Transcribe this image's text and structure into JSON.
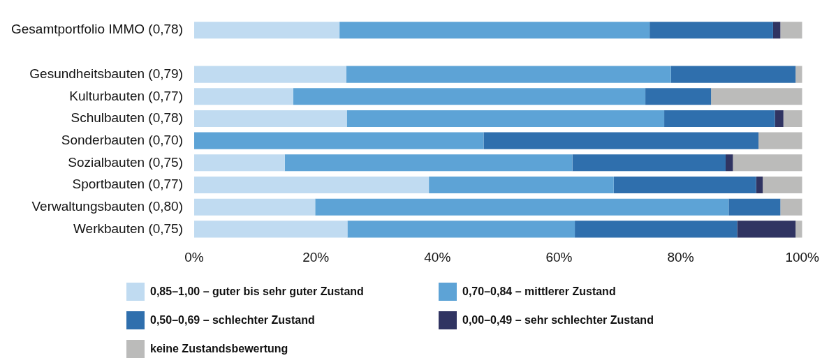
{
  "chart_data": {
    "type": "bar",
    "orientation": "horizontal",
    "stacked": true,
    "grid": false,
    "legend": "bottom",
    "categories": [
      "Gesamtportfolio IMMO (0,78)",
      null,
      "Gesundheitsbauten (0,79)",
      "Kulturbauten (0,77)",
      "Schulbauten (0,78)",
      "Sonderbauten (0,70)",
      "Sozialbauten (0,75)",
      "Sportbauten (0,77)",
      "Verwaltungsbauten (0,80)",
      "Werkbauten (0,75)"
    ],
    "xlim": [
      0,
      100
    ],
    "xticks": [
      {
        "value": 0,
        "label": "0%"
      },
      {
        "value": 20,
        "label": "20%"
      },
      {
        "value": 40,
        "label": "40%"
      },
      {
        "value": 60,
        "label": "60%"
      },
      {
        "value": 80,
        "label": "80%"
      },
      {
        "value": 100,
        "label": "100%"
      }
    ],
    "series": [
      {
        "name": "0,85–1,00 – guter bis sehr guter Zustand",
        "color": "#c0dbf1",
        "values": [
          23.9,
          null,
          25.0,
          16.3,
          25.1,
          0,
          14.9,
          38.6,
          19.9,
          25.2
        ]
      },
      {
        "name": "0,70–0,84 – mittlerer Zustand",
        "color": "#5da3d6",
        "values": [
          51.0,
          null,
          53.4,
          57.9,
          52.2,
          47.6,
          47.3,
          30.4,
          68.0,
          37.4
        ]
      },
      {
        "name": "0,50–0,69 – schlechter Zustand",
        "color": "#2f6fad",
        "values": [
          20.3,
          null,
          20.5,
          10.8,
          18.2,
          45.2,
          25.2,
          23.4,
          8.5,
          26.7
        ]
      },
      {
        "name": "0,00–0,49 – sehr schlechter Zustand",
        "color": "#303462",
        "values": [
          1.2,
          null,
          0,
          0,
          1.4,
          0,
          1.2,
          1.1,
          0,
          9.6
        ]
      },
      {
        "name": "keine Zustandsbewertung",
        "color": "#bbbbba",
        "values": [
          3.6,
          null,
          1.1,
          15.0,
          3.1,
          7.2,
          11.4,
          6.5,
          3.6,
          1.1
        ]
      }
    ]
  }
}
